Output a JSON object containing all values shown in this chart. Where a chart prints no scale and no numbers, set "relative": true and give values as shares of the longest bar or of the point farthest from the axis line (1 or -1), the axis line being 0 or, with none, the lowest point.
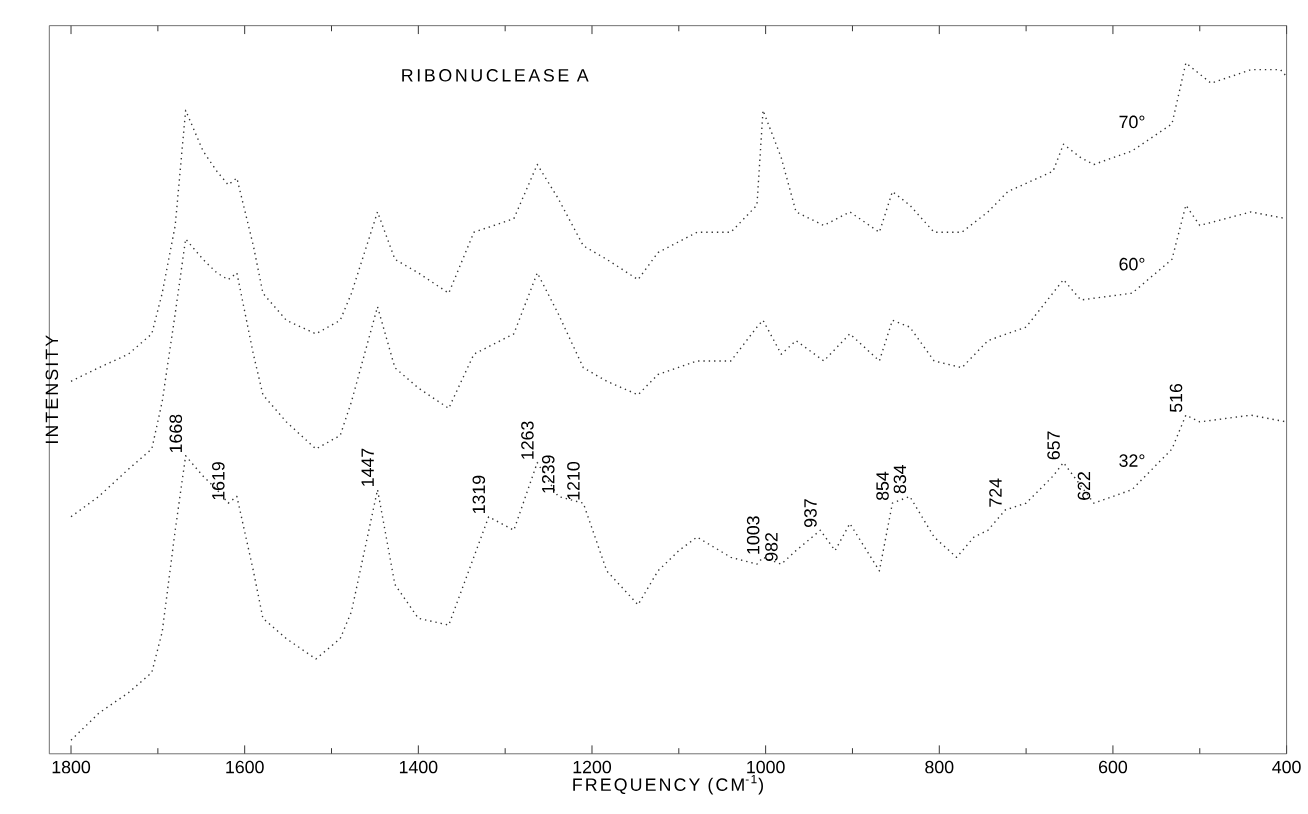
{
  "chart_data": {
    "type": "line",
    "title": "RIBONUCLEASE A",
    "xlabel": "FREQUENCY (CM$^{-1}$)",
    "ylabel": "INTENSITY",
    "relative": true,
    "line_style": "dotted",
    "xlim": [
      1825,
      400
    ],
    "xticks": [
      1800,
      1600,
      1400,
      1200,
      1000,
      800,
      600,
      400
    ],
    "series": [
      {
        "name": "70°",
        "color": "#333333",
        "x": [
          1800,
          1768,
          1734,
          1707,
          1695,
          1680,
          1668,
          1648,
          1632,
          1619,
          1609,
          1590,
          1579,
          1552,
          1518,
          1490,
          1477,
          1447,
          1427,
          1400,
          1365,
          1336,
          1290,
          1263,
          1239,
          1210,
          1183,
          1147,
          1124,
          1079,
          1040,
          1010,
          1003,
          982,
          965,
          933,
          903,
          869,
          854,
          834,
          806,
          774,
          744,
          721,
          669,
          657,
          637,
          622,
          578,
          532,
          516,
          487,
          441,
          407,
          400
        ],
        "values": [
          0.53,
          0.55,
          0.57,
          0.6,
          0.66,
          0.76,
          0.93,
          0.87,
          0.84,
          0.82,
          0.83,
          0.73,
          0.66,
          0.62,
          0.6,
          0.62,
          0.66,
          0.78,
          0.71,
          0.69,
          0.66,
          0.75,
          0.77,
          0.85,
          0.8,
          0.73,
          0.71,
          0.68,
          0.72,
          0.75,
          0.75,
          0.79,
          0.93,
          0.86,
          0.78,
          0.76,
          0.78,
          0.75,
          0.81,
          0.79,
          0.75,
          0.75,
          0.78,
          0.81,
          0.84,
          0.88,
          0.86,
          0.85,
          0.87,
          0.91,
          1.0,
          0.97,
          0.99,
          0.99,
          0.98
        ]
      },
      {
        "name": "60°",
        "color": "#333333",
        "x": [
          1800,
          1768,
          1734,
          1707,
          1695,
          1680,
          1668,
          1648,
          1632,
          1619,
          1609,
          1590,
          1579,
          1552,
          1518,
          1490,
          1477,
          1447,
          1427,
          1400,
          1365,
          1336,
          1290,
          1263,
          1239,
          1210,
          1183,
          1147,
          1124,
          1079,
          1040,
          1010,
          1003,
          982,
          965,
          933,
          903,
          869,
          854,
          834,
          806,
          774,
          744,
          700,
          657,
          637,
          578,
          532,
          516,
          500,
          441,
          400
        ],
        "values": [
          0.33,
          0.36,
          0.4,
          0.43,
          0.5,
          0.63,
          0.74,
          0.71,
          0.69,
          0.68,
          0.69,
          0.57,
          0.51,
          0.47,
          0.43,
          0.45,
          0.5,
          0.64,
          0.55,
          0.52,
          0.49,
          0.57,
          0.6,
          0.69,
          0.63,
          0.55,
          0.53,
          0.51,
          0.54,
          0.56,
          0.56,
          0.61,
          0.62,
          0.57,
          0.59,
          0.56,
          0.6,
          0.56,
          0.62,
          0.61,
          0.56,
          0.55,
          0.59,
          0.61,
          0.68,
          0.65,
          0.66,
          0.71,
          0.79,
          0.76,
          0.78,
          0.77
        ]
      },
      {
        "name": "32°",
        "color": "#333333",
        "x": [
          1800,
          1768,
          1734,
          1707,
          1695,
          1680,
          1668,
          1648,
          1632,
          1619,
          1609,
          1590,
          1579,
          1552,
          1518,
          1490,
          1477,
          1447,
          1427,
          1400,
          1365,
          1319,
          1290,
          1263,
          1239,
          1210,
          1183,
          1147,
          1124,
          1100,
          1079,
          1040,
          1010,
          1003,
          982,
          965,
          937,
          920,
          903,
          869,
          854,
          834,
          806,
          780,
          760,
          744,
          724,
          700,
          669,
          657,
          622,
          578,
          532,
          516,
          500,
          441,
          400
        ],
        "values": [
          0.0,
          0.04,
          0.07,
          0.1,
          0.16,
          0.31,
          0.42,
          0.39,
          0.37,
          0.35,
          0.36,
          0.25,
          0.18,
          0.15,
          0.12,
          0.15,
          0.19,
          0.37,
          0.23,
          0.18,
          0.17,
          0.33,
          0.31,
          0.41,
          0.36,
          0.35,
          0.25,
          0.2,
          0.25,
          0.28,
          0.3,
          0.27,
          0.26,
          0.27,
          0.26,
          0.28,
          0.31,
          0.28,
          0.32,
          0.25,
          0.35,
          0.36,
          0.3,
          0.27,
          0.3,
          0.31,
          0.34,
          0.35,
          0.39,
          0.41,
          0.35,
          0.37,
          0.43,
          0.48,
          0.47,
          0.48,
          0.47
        ]
      }
    ],
    "annotations": [
      {
        "text": "1668",
        "x": 1668,
        "y": 0.42
      },
      {
        "text": "1619",
        "x": 1619,
        "y": 0.35
      },
      {
        "text": "1447",
        "x": 1447,
        "y": 0.37
      },
      {
        "text": "1319",
        "x": 1319,
        "y": 0.33
      },
      {
        "text": "1263",
        "x": 1263,
        "y": 0.41
      },
      {
        "text": "1239",
        "x": 1239,
        "y": 0.36
      },
      {
        "text": "1210",
        "x": 1210,
        "y": 0.35
      },
      {
        "text": "1003",
        "x": 1003,
        "y": 0.27
      },
      {
        "text": "982",
        "x": 982,
        "y": 0.26
      },
      {
        "text": "937",
        "x": 937,
        "y": 0.31
      },
      {
        "text": "854",
        "x": 854,
        "y": 0.35
      },
      {
        "text": "834",
        "x": 834,
        "y": 0.36
      },
      {
        "text": "724",
        "x": 724,
        "y": 0.34
      },
      {
        "text": "657",
        "x": 657,
        "y": 0.41
      },
      {
        "text": "622",
        "x": 622,
        "y": 0.35
      },
      {
        "text": "516",
        "x": 516,
        "y": 0.48
      }
    ]
  }
}
